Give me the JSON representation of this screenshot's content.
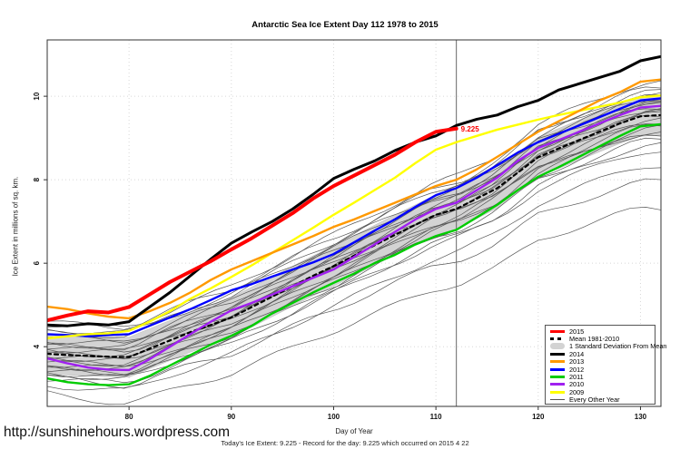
{
  "title": "Antarctic Sea Ice Extent Day 112 1978 to 2015",
  "footer": {
    "url": "http://sunshinehours.wordpress.com",
    "today_line": "Today's Ice Extent: 9.225  - Record for the day: 9.225 which occurred on 2015 4 22"
  },
  "chart_data": {
    "type": "line",
    "title": "Antarctic Sea Ice Extent Day 112 1978 to 2015",
    "xlabel": "Day of Year",
    "ylabel": "Ice Extent in millions of sq. km.",
    "xlim": [
      72,
      132
    ],
    "ylim": [
      2.57,
      11.35
    ],
    "xticks": [
      80,
      90,
      100,
      110,
      120,
      130
    ],
    "yticks": [
      4,
      6,
      8,
      10
    ],
    "grid": "dotted",
    "grid_color": "#d8d8d8",
    "vline_day": 112,
    "annotation": {
      "text": "9.225",
      "day": 112,
      "value": 9.225,
      "color": "#FF0000"
    },
    "std": 0.48,
    "band_color": "#d3d3d3",
    "days": [
      72,
      74,
      76,
      78,
      80,
      82,
      84,
      86,
      88,
      90,
      92,
      94,
      96,
      98,
      100,
      102,
      104,
      106,
      108,
      110,
      112,
      114,
      116,
      118,
      120,
      122,
      124,
      126,
      128,
      130,
      132
    ],
    "series": [
      {
        "name": "Mean 1981-2010",
        "color": "#000000",
        "width": 2.2,
        "dash": "4 4",
        "values": [
          3.83,
          3.8,
          3.78,
          3.76,
          3.75,
          3.95,
          4.15,
          4.35,
          4.52,
          4.7,
          4.95,
          5.2,
          5.45,
          5.7,
          5.93,
          6.18,
          6.43,
          6.68,
          6.92,
          7.16,
          7.3,
          7.55,
          7.8,
          8.17,
          8.54,
          8.75,
          8.95,
          9.15,
          9.35,
          9.52,
          9.55
        ]
      },
      {
        "name": "2011",
        "color": "#00CC00",
        "width": 2.4,
        "values": [
          3.24,
          3.15,
          3.1,
          3.08,
          3.1,
          3.3,
          3.55,
          3.8,
          4.05,
          4.26,
          4.5,
          4.8,
          5.05,
          5.3,
          5.53,
          5.75,
          6.0,
          6.2,
          6.45,
          6.65,
          6.8,
          7.1,
          7.4,
          7.75,
          8.07,
          8.3,
          8.55,
          8.8,
          9.05,
          9.28,
          9.33
        ]
      },
      {
        "name": "2010",
        "color": "#A020F0",
        "width": 2.4,
        "values": [
          3.72,
          3.6,
          3.5,
          3.45,
          3.44,
          3.7,
          4.0,
          4.3,
          4.6,
          4.87,
          5.05,
          5.25,
          5.45,
          5.65,
          5.85,
          6.15,
          6.45,
          6.75,
          7.05,
          7.3,
          7.45,
          7.75,
          8.05,
          8.45,
          8.76,
          8.95,
          9.15,
          9.35,
          9.55,
          9.73,
          9.77
        ]
      },
      {
        "name": "2012",
        "color": "#0000FF",
        "width": 2.4,
        "values": [
          4.3,
          4.28,
          4.25,
          4.28,
          4.3,
          4.5,
          4.7,
          4.9,
          5.12,
          5.35,
          5.5,
          5.68,
          5.85,
          6.02,
          6.22,
          6.5,
          6.78,
          7.05,
          7.35,
          7.63,
          7.8,
          8.05,
          8.35,
          8.65,
          8.9,
          9.1,
          9.3,
          9.5,
          9.7,
          9.9,
          9.95
        ]
      },
      {
        "name": "2009",
        "color": "#FFFF00",
        "width": 2.4,
        "values": [
          4.2,
          4.25,
          4.3,
          4.32,
          4.38,
          4.6,
          4.85,
          5.15,
          5.4,
          5.67,
          5.95,
          6.25,
          6.55,
          6.85,
          7.16,
          7.45,
          7.75,
          8.05,
          8.4,
          8.72,
          8.9,
          9.05,
          9.2,
          9.32,
          9.44,
          9.55,
          9.65,
          9.75,
          9.85,
          9.98,
          10.02
        ]
      },
      {
        "name": "2013",
        "color": "#FF9900",
        "width": 2.4,
        "values": [
          4.96,
          4.9,
          4.8,
          4.72,
          4.68,
          4.85,
          5.05,
          5.3,
          5.6,
          5.85,
          6.05,
          6.25,
          6.45,
          6.65,
          6.87,
          7.05,
          7.25,
          7.45,
          7.65,
          7.85,
          8.0,
          8.25,
          8.55,
          8.85,
          9.15,
          9.4,
          9.65,
          9.9,
          10.1,
          10.35,
          10.4
        ]
      },
      {
        "name": "2014",
        "color": "#000000",
        "width": 3,
        "values": [
          4.52,
          4.5,
          4.55,
          4.52,
          4.6,
          4.95,
          5.3,
          5.7,
          6.1,
          6.48,
          6.75,
          7.0,
          7.3,
          7.65,
          8.03,
          8.25,
          8.45,
          8.7,
          8.9,
          9.05,
          9.3,
          9.45,
          9.55,
          9.75,
          9.9,
          10.15,
          10.3,
          10.45,
          10.6,
          10.85,
          10.95
        ]
      },
      {
        "name": "2015",
        "color": "#FF0000",
        "width": 4,
        "days": [
          72,
          74,
          76,
          78,
          80,
          82,
          84,
          86,
          88,
          90,
          92,
          94,
          96,
          98,
          100,
          102,
          104,
          106,
          108,
          110,
          112
        ],
        "values": [
          4.63,
          4.75,
          4.85,
          4.82,
          4.95,
          5.25,
          5.55,
          5.8,
          6.05,
          6.33,
          6.6,
          6.9,
          7.2,
          7.55,
          7.85,
          8.1,
          8.35,
          8.6,
          8.9,
          9.15,
          9.225
        ]
      }
    ],
    "background_years": {
      "label": "Every Other Year",
      "color": "#555555",
      "width": 0.7,
      "offsets": [
        [
          -0.95,
          -2.25
        ],
        [
          -0.75,
          -1.2
        ],
        [
          -0.6,
          -0.7
        ],
        [
          -0.55,
          -1.6
        ],
        [
          -0.5,
          -0.45
        ],
        [
          -0.45,
          -0.85
        ],
        [
          -0.4,
          -0.3
        ],
        [
          -0.35,
          -0.6
        ],
        [
          -0.3,
          -0.15
        ],
        [
          -0.25,
          -0.4
        ],
        [
          -0.2,
          0.05
        ],
        [
          -0.15,
          -0.25
        ],
        [
          -0.1,
          0.15
        ],
        [
          -0.05,
          -0.1
        ],
        [
          0,
          0.25
        ],
        [
          0.05,
          0
        ],
        [
          0.1,
          0.35
        ],
        [
          0.15,
          0.1
        ],
        [
          0.2,
          0.45
        ],
        [
          0.25,
          0.2
        ],
        [
          0.3,
          0.55
        ],
        [
          0.4,
          0.3
        ],
        [
          0.5,
          0.65
        ],
        [
          0.6,
          0.4
        ],
        [
          0.7,
          0.8
        ],
        [
          0.75,
          0.55
        ]
      ]
    }
  },
  "legend": {
    "items": [
      {
        "label": "2015",
        "swatch": "thick",
        "color": "#FF0000"
      },
      {
        "label": "Mean 1981-2010",
        "swatch": "dashed",
        "color": "#000000"
      },
      {
        "label": "1 Standard Deviation From Mean",
        "swatch": "band",
        "color": "#d3d3d3"
      },
      {
        "label": "2014",
        "swatch": "thick",
        "color": "#000000"
      },
      {
        "label": "2013",
        "swatch": "thick",
        "color": "#FF9900"
      },
      {
        "label": "2012",
        "swatch": "thick",
        "color": "#0000FF"
      },
      {
        "label": "2011",
        "swatch": "thick",
        "color": "#00CC00"
      },
      {
        "label": "2010",
        "swatch": "thick",
        "color": "#A020F0"
      },
      {
        "label": "2009",
        "swatch": "thick",
        "color": "#FFFF00"
      },
      {
        "label": "Every Other Year",
        "swatch": "thin",
        "color": "#555555"
      }
    ]
  }
}
